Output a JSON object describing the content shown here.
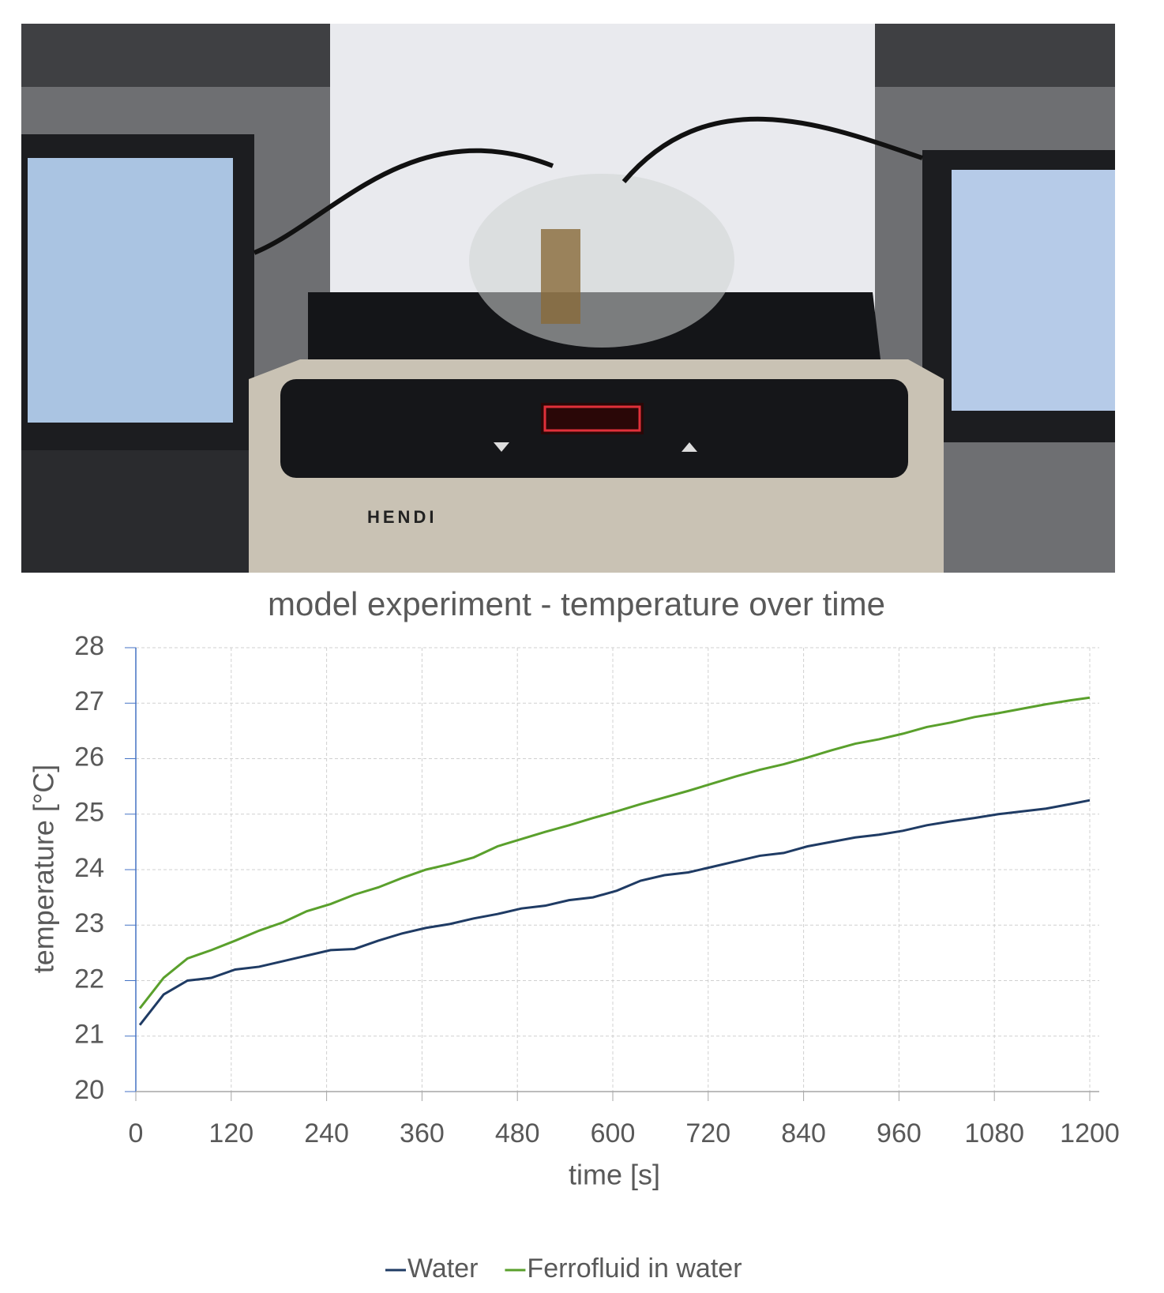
{
  "photo": {
    "brand": "HENDI"
  },
  "chart_data": {
    "type": "line",
    "title": "model experiment - temperature over time",
    "x_label": "time [s]",
    "y_label": "temperature [°C]",
    "x": [
      5,
      35,
      65,
      95,
      125,
      155,
      185,
      215,
      245,
      275,
      305,
      335,
      365,
      395,
      425,
      455,
      485,
      515,
      545,
      575,
      605,
      635,
      665,
      695,
      725,
      755,
      785,
      815,
      845,
      875,
      905,
      935,
      965,
      995,
      1025,
      1055,
      1085,
      1115,
      1145,
      1175,
      1200
    ],
    "series": [
      {
        "name": "Water",
        "color": "#1f3b64",
        "values": [
          21.2,
          21.75,
          22.0,
          22.05,
          22.2,
          22.25,
          22.35,
          22.45,
          22.55,
          22.57,
          22.72,
          22.85,
          22.95,
          23.02,
          23.12,
          23.2,
          23.3,
          23.35,
          23.45,
          23.5,
          23.62,
          23.8,
          23.9,
          23.95,
          24.05,
          24.15,
          24.25,
          24.3,
          24.42,
          24.5,
          24.58,
          24.63,
          24.7,
          24.8,
          24.87,
          24.93,
          25.0,
          25.05,
          25.1,
          25.18,
          25.25
        ]
      },
      {
        "name": "Ferrofluid in water",
        "color": "#5aa02c",
        "values": [
          21.5,
          22.05,
          22.4,
          22.55,
          22.72,
          22.9,
          23.05,
          23.25,
          23.38,
          23.55,
          23.68,
          23.85,
          24.0,
          24.1,
          24.22,
          24.42,
          24.55,
          24.68,
          24.8,
          24.93,
          25.05,
          25.18,
          25.3,
          25.42,
          25.55,
          25.68,
          25.8,
          25.9,
          26.02,
          26.15,
          26.27,
          26.35,
          26.45,
          26.57,
          26.65,
          26.75,
          26.82,
          26.9,
          26.98,
          27.05,
          27.1
        ]
      }
    ],
    "xlim": [
      0,
      1200
    ],
    "xticks": [
      0,
      120,
      240,
      360,
      480,
      600,
      720,
      840,
      960,
      1080,
      1200
    ],
    "ylim": [
      20,
      28
    ],
    "yticks": [
      20,
      21,
      22,
      23,
      24,
      25,
      26,
      27,
      28
    ],
    "grid": true,
    "legend": "bottom"
  }
}
